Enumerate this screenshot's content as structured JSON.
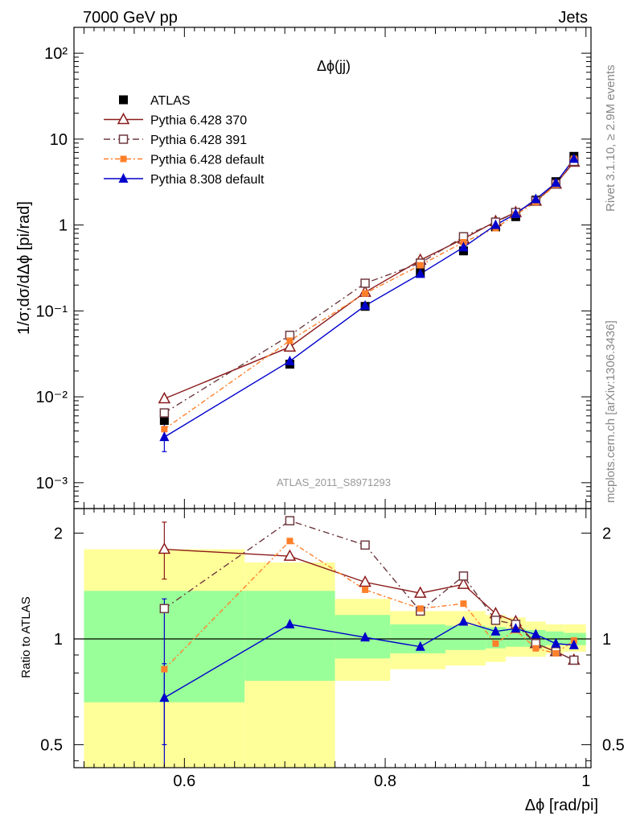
{
  "header": {
    "left": "7000 GeV pp",
    "right": "Jets"
  },
  "side_labels": {
    "rivet": "Rivet 3.1.10, ≥ 2.9M events",
    "mcplots": "mcplots.cern.ch [arXiv:1306.3436]"
  },
  "chart_data": [
    {
      "type": "line",
      "panel": "main",
      "title": "Δϕ(jj)",
      "ylabel": "1/σ;dσ/dΔϕ [pi/rad]",
      "xlabel": "",
      "ylog": true,
      "xlim": [
        0.49,
        1.005
      ],
      "ylim": [
        0.0005,
        200
      ],
      "yticks": [
        {
          "value": 0.001,
          "label": "10⁻³"
        },
        {
          "value": 0.01,
          "label": "10⁻²"
        },
        {
          "value": 0.1,
          "label": "10⁻¹"
        },
        {
          "value": 1,
          "label": "1"
        },
        {
          "value": 10,
          "label": "10"
        },
        {
          "value": 100,
          "label": "10²"
        }
      ],
      "watermark": "ATLAS_2011_S8971293",
      "legend_position": "top-left",
      "x": [
        0.58,
        0.705,
        0.78,
        0.835,
        0.878,
        0.91,
        0.93,
        0.95,
        0.97,
        0.988
      ],
      "series": [
        {
          "name": "ATLAS",
          "color": "#000000",
          "marker": "square-filled",
          "dash": "none",
          "values": [
            0.0053,
            0.024,
            0.113,
            0.28,
            0.5,
            0.95,
            1.25,
            1.95,
            3.2,
            6.3
          ]
        },
        {
          "name": "Pythia 6.428 370",
          "color": "#8b1a1a",
          "marker": "triangle-open",
          "dash": "solid",
          "values": [
            0.0095,
            0.038,
            0.165,
            0.39,
            0.69,
            1.1,
            1.4,
            1.9,
            3.0,
            5.4
          ]
        },
        {
          "name": "Pythia 6.428 391",
          "color": "#6e3a40",
          "marker": "square-open",
          "dash": "dashdot",
          "values": [
            0.0065,
            0.052,
            0.21,
            0.36,
            0.73,
            1.08,
            1.4,
            1.9,
            3.0,
            5.5
          ]
        },
        {
          "name": "Pythia 6.428 default",
          "color": "#ff7f2a",
          "marker": "square-filled-small",
          "dash": "dashdot2",
          "values": [
            0.0042,
            0.045,
            0.16,
            0.34,
            0.63,
            0.92,
            1.32,
            1.85,
            2.95,
            5.9
          ]
        },
        {
          "name": "Pythia 8.308 default",
          "color": "#0000cc",
          "marker": "triangle-filled",
          "dash": "solid",
          "values": [
            0.0034,
            0.026,
            0.115,
            0.27,
            0.55,
            1.0,
            1.35,
            2.0,
            3.1,
            5.9
          ]
        }
      ],
      "errors": [
        {
          "index": 4,
          "x": 0.58,
          "lo": 0.0023,
          "hi": 0.0048
        }
      ]
    },
    {
      "type": "line",
      "panel": "ratio",
      "ylabel": "Ratio to ATLAS",
      "xlabel": "Δϕ [rad/pi]",
      "ylog": true,
      "xlim": [
        0.49,
        1.005
      ],
      "ylim": [
        0.43,
        2.35
      ],
      "yticks": [
        {
          "value": 0.5,
          "label": "0.5"
        },
        {
          "value": 1,
          "label": "1"
        },
        {
          "value": 2,
          "label": "2"
        }
      ],
      "xticks": [
        {
          "value": 0.6,
          "label": "0.6"
        },
        {
          "value": 0.8,
          "label": "0.8"
        },
        {
          "value": 1.0,
          "label": "1"
        }
      ],
      "bands": [
        {
          "x0": 0.5,
          "x1": 0.66,
          "yellow": [
            0.43,
            1.8
          ],
          "green": [
            0.66,
            1.37
          ]
        },
        {
          "x0": 0.66,
          "x1": 0.75,
          "yellow": [
            0.37,
            1.65
          ],
          "green": [
            0.76,
            1.37
          ]
        },
        {
          "x0": 0.75,
          "x1": 0.805,
          "yellow": [
            0.76,
            1.3
          ],
          "green": [
            0.88,
            1.17
          ]
        },
        {
          "x0": 0.805,
          "x1": 0.86,
          "yellow": [
            0.82,
            1.2
          ],
          "green": [
            0.91,
            1.1
          ]
        },
        {
          "x0": 0.86,
          "x1": 0.9,
          "yellow": [
            0.84,
            1.2
          ],
          "green": [
            0.93,
            1.09
          ]
        },
        {
          "x0": 0.9,
          "x1": 0.92,
          "yellow": [
            0.86,
            1.17
          ],
          "green": [
            0.94,
            1.08
          ]
        },
        {
          "x0": 0.92,
          "x1": 0.94,
          "yellow": [
            0.89,
            1.15
          ],
          "green": [
            0.95,
            1.07
          ]
        },
        {
          "x0": 0.94,
          "x1": 0.96,
          "yellow": [
            0.89,
            1.12
          ],
          "green": [
            0.95,
            1.06
          ]
        },
        {
          "x0": 0.96,
          "x1": 0.978,
          "yellow": [
            0.91,
            1.1
          ],
          "green": [
            0.96,
            1.05
          ]
        },
        {
          "x0": 0.978,
          "x1": 1.0,
          "yellow": [
            0.92,
            1.1
          ],
          "green": [
            0.96,
            1.04
          ]
        }
      ],
      "x": [
        0.58,
        0.705,
        0.78,
        0.835,
        0.878,
        0.91,
        0.93,
        0.95,
        0.97,
        0.988
      ],
      "series": [
        {
          "name": "Pythia 6.428 370",
          "color": "#8b1a1a",
          "marker": "triangle-open",
          "dash": "solid",
          "values": [
            1.8,
            1.72,
            1.45,
            1.35,
            1.43,
            1.18,
            1.12,
            0.97,
            0.92,
            0.87
          ]
        },
        {
          "name": "Pythia 6.428 391",
          "color": "#6e3a40",
          "marker": "square-open",
          "dash": "dashdot",
          "values": [
            1.22,
            2.17,
            1.85,
            1.2,
            1.51,
            1.13,
            1.1,
            0.97,
            0.92,
            0.87
          ]
        },
        {
          "name": "Pythia 6.428 default",
          "color": "#ff7f2a",
          "marker": "square-filled-small",
          "dash": "dashdot2",
          "values": [
            0.82,
            1.9,
            1.38,
            1.22,
            1.26,
            0.97,
            1.06,
            0.94,
            0.91,
            0.99
          ]
        },
        {
          "name": "Pythia 8.308 default",
          "color": "#0000cc",
          "marker": "triangle-filled",
          "dash": "solid",
          "values": [
            0.68,
            1.1,
            1.01,
            0.95,
            1.12,
            1.05,
            1.07,
            1.03,
            0.97,
            0.96
          ]
        }
      ],
      "errors": [
        {
          "index": 0,
          "x": 0.58,
          "lo": 1.48,
          "hi": 2.15
        },
        {
          "index": 3,
          "x": 0.58,
          "lo": 0.5,
          "hi": 1.3
        },
        {
          "index": 3,
          "x": 0.58,
          "lo": 0.4,
          "hi": 0.85
        }
      ]
    }
  ]
}
